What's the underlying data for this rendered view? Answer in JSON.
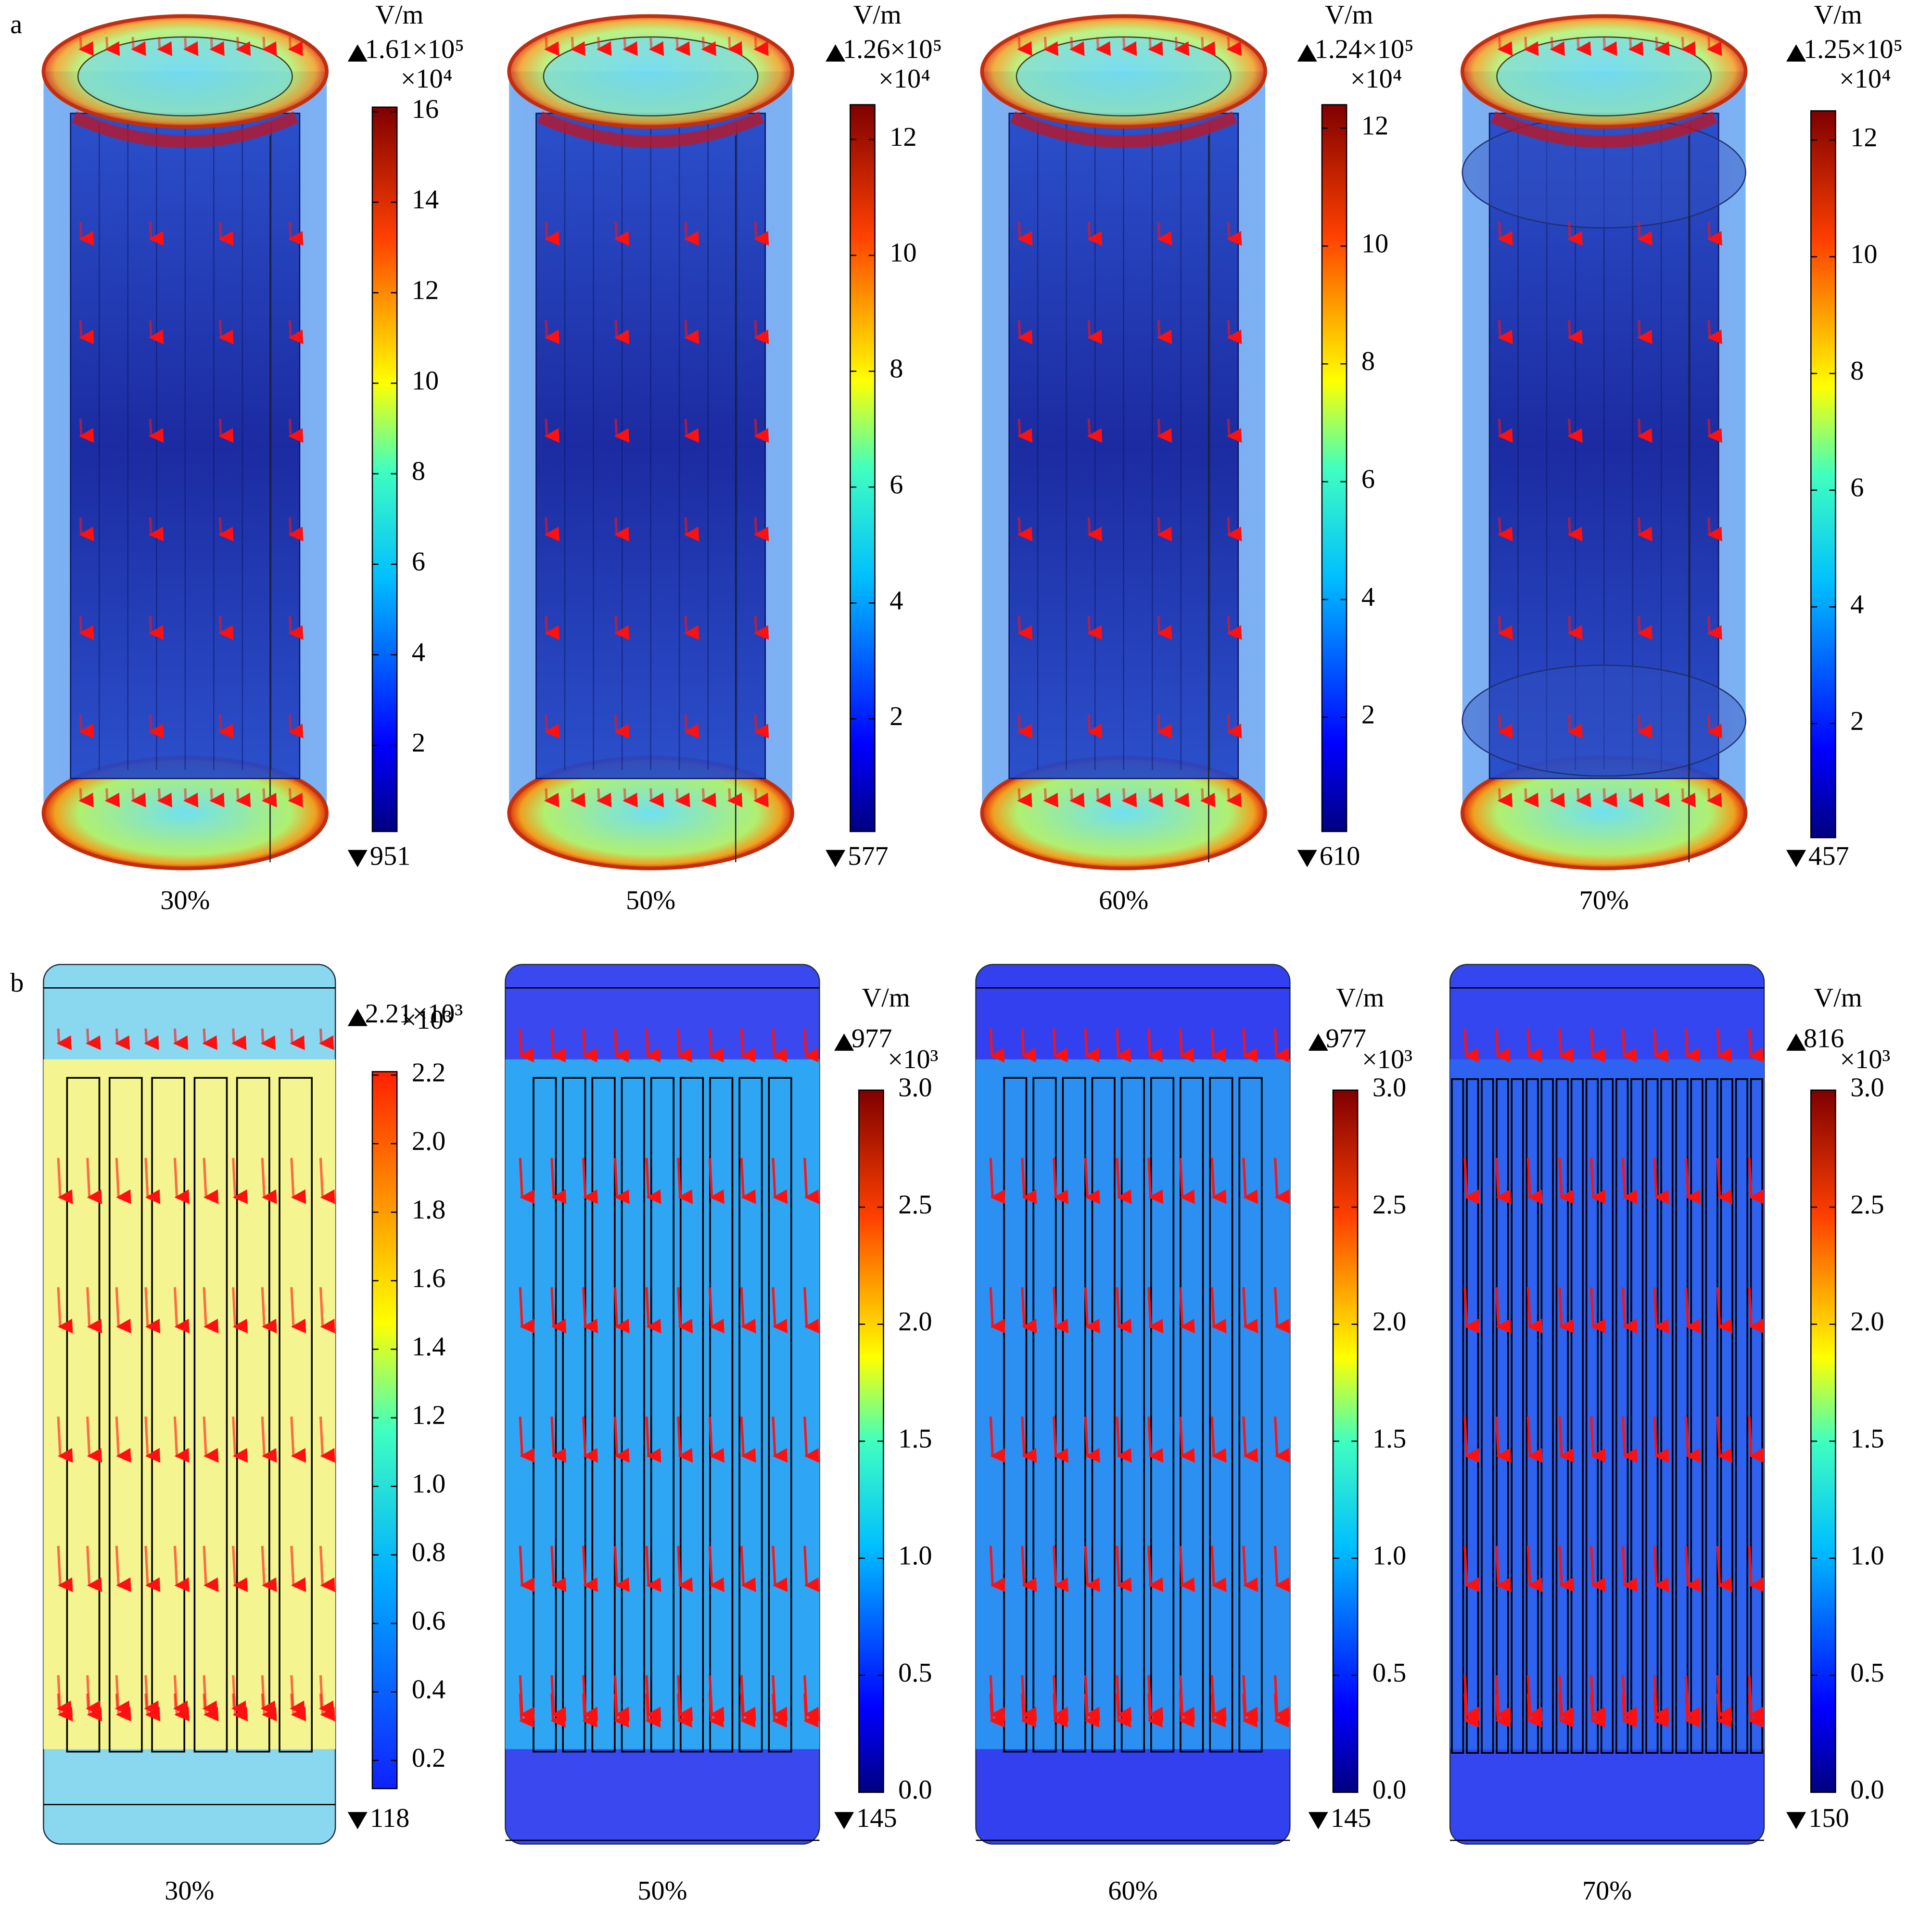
{
  "figure": {
    "panel_labels": [
      "a",
      "b"
    ],
    "rows": [
      {
        "panels": [
          {
            "caption": "30%",
            "unit": "V/m",
            "max_label": "1.61×10⁵",
            "multiplier": "×10⁴",
            "min_label": "951",
            "range": [
              0.0951,
              16.1
            ],
            "ticks": [
              2,
              4,
              6,
              8,
              10,
              12,
              14,
              16
            ]
          },
          {
            "caption": "50%",
            "unit": "V/m",
            "max_label": "1.26×10⁵",
            "multiplier": "×10⁴",
            "min_label": "577",
            "range": [
              0.0577,
              12.6
            ],
            "ticks": [
              2,
              4,
              6,
              8,
              10,
              12
            ]
          },
          {
            "caption": "60%",
            "unit": "V/m",
            "max_label": "1.24×10⁵",
            "multiplier": "×10⁴",
            "min_label": "610",
            "range": [
              0.061,
              12.4
            ],
            "ticks": [
              2,
              4,
              6,
              8,
              10,
              12
            ]
          },
          {
            "caption": "70%",
            "unit": "V/m",
            "max_label": "1.25×10⁵",
            "multiplier": "×10⁴",
            "min_label": "457",
            "range": [
              0.0457,
              12.5
            ],
            "ticks": [
              2,
              4,
              6,
              8,
              10,
              12
            ]
          }
        ]
      },
      {
        "panels": [
          {
            "caption": "30%",
            "max_label": "2.21×10³",
            "multiplier": "×10³",
            "min_label": "118",
            "range": [
              0.118,
              2.21
            ],
            "ticks": [
              0.2,
              0.4,
              0.6,
              0.8,
              {
                "value": 1,
                "label": "1.0"
              },
              1.2,
              1.4,
              1.6,
              1.8,
              {
                "value": 2,
                "label": "2.0"
              },
              2.2
            ]
          },
          {
            "caption": "50%",
            "unit": "V/m",
            "max_label": "977",
            "multiplier": "×10³",
            "min_label": "145",
            "range": [
              0,
              3
            ],
            "ticks": [
              {
                "value": 0,
                "label": "0.0"
              },
              0.5,
              {
                "value": 1,
                "label": "1.0"
              },
              1.5,
              {
                "value": 2,
                "label": "2.0"
              },
              2.5,
              {
                "value": 3,
                "label": "3.0"
              }
            ]
          },
          {
            "caption": "60%",
            "unit": "V/m",
            "max_label": "977",
            "multiplier": "×10³",
            "min_label": "145",
            "range": [
              0,
              3
            ],
            "ticks": [
              {
                "value": 0,
                "label": "0.0"
              },
              0.5,
              {
                "value": 1,
                "label": "1.0"
              },
              1.5,
              {
                "value": 2,
                "label": "2.0"
              },
              2.5,
              {
                "value": 3,
                "label": "3.0"
              }
            ]
          },
          {
            "caption": "70%",
            "unit": "V/m",
            "max_label": "816",
            "multiplier": "×10³",
            "min_label": "150",
            "range": [
              0,
              3
            ],
            "ticks": [
              {
                "value": 0,
                "label": "0.0"
              },
              0.5,
              {
                "value": 1,
                "label": "1.0"
              },
              1.5,
              {
                "value": 2,
                "label": "2.0"
              },
              2.5,
              {
                "value": 3,
                "label": "3.0"
              }
            ]
          }
        ]
      }
    ]
  }
}
